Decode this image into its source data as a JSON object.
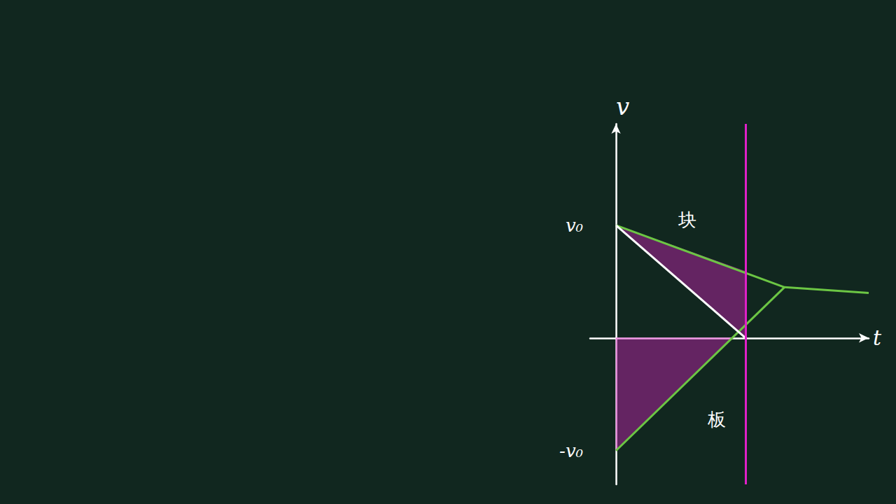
{
  "chart_data": {
    "type": "line",
    "xlim": [
      -0.2,
      1.95
    ],
    "ylim": [
      -1.3,
      1.9
    ],
    "yticks": [
      {
        "value": 1,
        "label": "v₀"
      },
      {
        "value": -1,
        "label": "-v₀"
      }
    ],
    "x_label": "t",
    "y_label": "v",
    "tick_labels": "y",
    "grid": false,
    "series": [
      {
        "color": "#6cc644",
        "x": [
          0,
          1.3,
          1.95
        ],
        "values": [
          1,
          0.45,
          0.4
        ]
      },
      {
        "color": "#6cc644",
        "x": [
          0,
          1.3
        ],
        "values": [
          -1,
          0.45
        ]
      },
      {
        "color": "#ffffff",
        "x": [
          0,
          1
        ],
        "values": [
          1,
          0
        ]
      }
    ],
    "vlines": [
      {
        "x": 1,
        "color": "#e020c8"
      }
    ],
    "shaded": [
      {
        "color": "#e020c8",
        "points": [
          [
            0,
            1
          ],
          [
            1,
            0.59
          ],
          [
            1,
            0
          ]
        ]
      },
      {
        "color": "#e020c8",
        "points": [
          [
            0,
            0
          ],
          [
            0,
            -1
          ],
          [
            0.9,
            0
          ]
        ]
      }
    ],
    "annotations": [
      {
        "text": "块",
        "x": 0.55,
        "y": 1.05
      },
      {
        "text": "板",
        "x": 0.78,
        "y": -0.72
      }
    ]
  }
}
